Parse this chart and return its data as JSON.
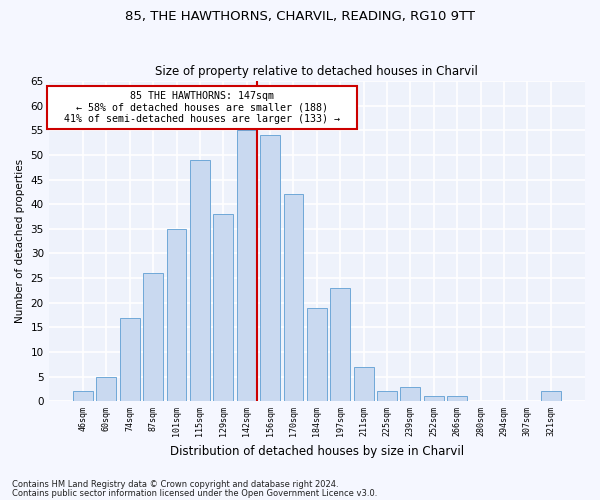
{
  "title1": "85, THE HAWTHORNS, CHARVIL, READING, RG10 9TT",
  "title2": "Size of property relative to detached houses in Charvil",
  "xlabel": "Distribution of detached houses by size in Charvil",
  "ylabel": "Number of detached properties",
  "footer1": "Contains HM Land Registry data © Crown copyright and database right 2024.",
  "footer2": "Contains public sector information licensed under the Open Government Licence v3.0.",
  "annotation_line1": "85 THE HAWTHORNS: 147sqm",
  "annotation_line2": "← 58% of detached houses are smaller (188)",
  "annotation_line3": "41% of semi-detached houses are larger (133) →",
  "bin_labels": [
    "46sqm",
    "60sqm",
    "74sqm",
    "87sqm",
    "101sqm",
    "115sqm",
    "129sqm",
    "142sqm",
    "156sqm",
    "170sqm",
    "184sqm",
    "197sqm",
    "211sqm",
    "225sqm",
    "239sqm",
    "252sqm",
    "266sqm",
    "280sqm",
    "294sqm",
    "307sqm",
    "321sqm"
  ],
  "bar_values": [
    2,
    5,
    17,
    26,
    35,
    49,
    38,
    55,
    54,
    42,
    19,
    23,
    7,
    2,
    3,
    1,
    1,
    0,
    0,
    0,
    2
  ],
  "highlight_index": 7,
  "bar_color": "#c9d9f0",
  "bar_edgecolor": "#6fa8d8",
  "vline_color": "#cc0000",
  "background_color": "#eef2fb",
  "grid_color": "#ffffff",
  "annotation_box_edgecolor": "#cc0000",
  "annotation_box_facecolor": "#ffffff",
  "fig_facecolor": "#f5f7ff",
  "ylim": [
    0,
    65
  ],
  "yticks": [
    0,
    5,
    10,
    15,
    20,
    25,
    30,
    35,
    40,
    45,
    50,
    55,
    60,
    65
  ]
}
